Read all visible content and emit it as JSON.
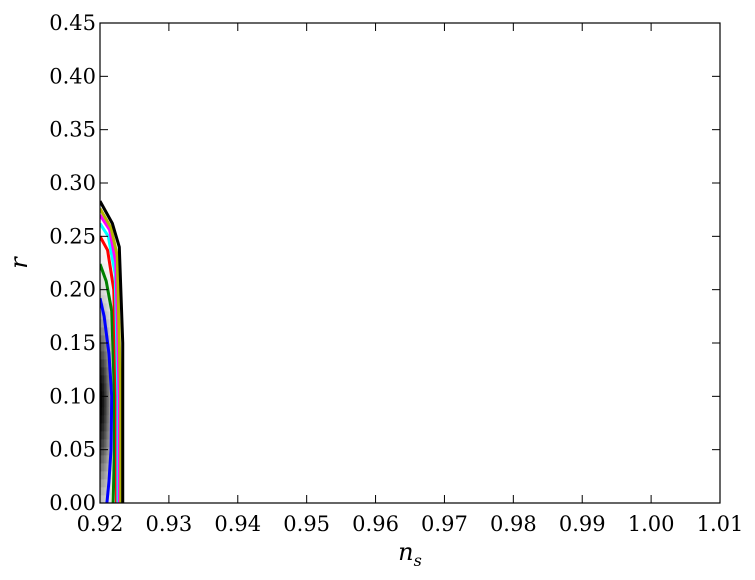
{
  "chart_data": {
    "type": "line",
    "title": "",
    "xlabel": "n",
    "xlabel_subscript": "s",
    "ylabel": "r",
    "xlim": [
      0.92,
      1.01
    ],
    "ylim": [
      0.0,
      0.45
    ],
    "x_ticks": [
      0.92,
      0.93,
      0.94,
      0.95,
      0.96,
      0.97,
      0.98,
      0.99,
      1.0,
      1.01
    ],
    "x_tick_labels": [
      "0.92",
      "0.93",
      "0.94",
      "0.95",
      "0.96",
      "0.97",
      "0.98",
      "0.99",
      "1.00",
      "1.01"
    ],
    "y_ticks": [
      0.0,
      0.05,
      0.1,
      0.15,
      0.2,
      0.25,
      0.3,
      0.35,
      0.4,
      0.45
    ],
    "y_tick_labels": [
      "0.00",
      "0.05",
      "0.10",
      "0.15",
      "0.20",
      "0.25",
      "0.30",
      "0.35",
      "0.40",
      "0.45"
    ],
    "grid": false,
    "legend": "none",
    "density": {
      "colormap": "grayscale",
      "peak": [
        0.92,
        0.095
      ],
      "sigma": [
        0.0011,
        0.055
      ]
    },
    "series": [
      {
        "color": "#0000ff",
        "points": [
          [
            0.92,
            0.192
          ],
          [
            0.9206,
            0.175
          ],
          [
            0.9213,
            0.14
          ],
          [
            0.9217,
            0.1
          ],
          [
            0.9216,
            0.05
          ],
          [
            0.9213,
            0.02
          ],
          [
            0.921,
            0.0
          ]
        ]
      },
      {
        "color": "#008000",
        "points": [
          [
            0.92,
            0.224
          ],
          [
            0.9209,
            0.208
          ],
          [
            0.9217,
            0.18
          ],
          [
            0.9221,
            0.1
          ],
          [
            0.9221,
            0.05
          ],
          [
            0.9219,
            0.0
          ]
        ]
      },
      {
        "color": "#ff0000",
        "points": [
          [
            0.92,
            0.25
          ],
          [
            0.9211,
            0.237
          ],
          [
            0.922,
            0.2
          ],
          [
            0.9224,
            0.1
          ],
          [
            0.9224,
            0.0
          ]
        ]
      },
      {
        "color": "#00ffff",
        "points": [
          [
            0.92,
            0.262
          ],
          [
            0.9212,
            0.25
          ],
          [
            0.9222,
            0.215
          ],
          [
            0.9226,
            0.1
          ],
          [
            0.9226,
            0.0
          ]
        ]
      },
      {
        "color": "#ff00ff",
        "points": [
          [
            0.92,
            0.27
          ],
          [
            0.9214,
            0.256
          ],
          [
            0.9223,
            0.225
          ],
          [
            0.9228,
            0.1
          ],
          [
            0.9228,
            0.0
          ]
        ]
      },
      {
        "color": "#b3b300",
        "points": [
          [
            0.92,
            0.276
          ],
          [
            0.9216,
            0.258
          ],
          [
            0.9225,
            0.232
          ],
          [
            0.923,
            0.1
          ],
          [
            0.923,
            0.0
          ]
        ]
      },
      {
        "color": "#000000",
        "points": [
          [
            0.92,
            0.283
          ],
          [
            0.9218,
            0.262
          ],
          [
            0.9228,
            0.24
          ],
          [
            0.9233,
            0.15
          ],
          [
            0.9233,
            0.0
          ]
        ]
      }
    ]
  }
}
